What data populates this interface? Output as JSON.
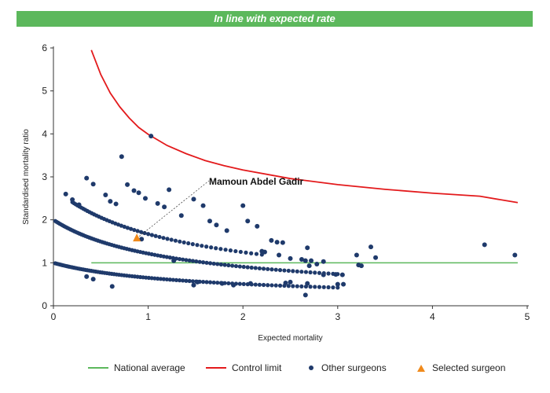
{
  "banner": {
    "text": "In line with expected rate",
    "color": "#5cb85c"
  },
  "chart_data": {
    "type": "scatter",
    "title": "",
    "xlabel": "Expected mortality",
    "ylabel": "Standardised mortality ratio",
    "xlim": [
      0,
      5
    ],
    "ylim": [
      0,
      6
    ],
    "x_ticks": [
      "0",
      "1",
      "2",
      "3",
      "4",
      "5"
    ],
    "y_ticks": [
      "0",
      "1",
      "2",
      "3",
      "4",
      "5",
      "6"
    ],
    "grid": false,
    "legend_position": "bottom",
    "annotation": {
      "text": "Mamoun Abdel Gadir",
      "x": 0.88,
      "y": 1.57
    },
    "series": [
      {
        "name": "National average",
        "kind": "line",
        "color": "#5cb85c",
        "x": [
          0.4,
          4.9
        ],
        "y": [
          1.0,
          1.0
        ]
      },
      {
        "name": "Control limit",
        "kind": "line",
        "color": "#e31a1c",
        "x": [
          0.4,
          0.5,
          0.6,
          0.7,
          0.8,
          0.9,
          1.0,
          1.2,
          1.4,
          1.6,
          1.8,
          2.0,
          2.5,
          3.0,
          3.5,
          4.0,
          4.5,
          4.9
        ],
        "y": [
          5.95,
          5.38,
          4.95,
          4.63,
          4.37,
          4.15,
          3.99,
          3.73,
          3.54,
          3.38,
          3.26,
          3.16,
          2.96,
          2.82,
          2.71,
          2.62,
          2.55,
          2.4
        ]
      },
      {
        "name": "Other surgeons",
        "kind": "scatter",
        "color": "#1f3a6b",
        "x": [
          0.13,
          0.2,
          0.27,
          0.35,
          0.42,
          0.55,
          0.6,
          0.66,
          0.72,
          0.78,
          0.85,
          0.9,
          0.97,
          1.03,
          1.1,
          1.17,
          1.22,
          1.35,
          1.48,
          1.58,
          1.65,
          1.72,
          1.83,
          2.0,
          2.05,
          2.15,
          2.2,
          2.23,
          2.3,
          2.36,
          2.42,
          2.38,
          2.5,
          2.62,
          2.66,
          2.68,
          2.7,
          2.72,
          2.78,
          2.85,
          2.98,
          3.05,
          3.2,
          3.25,
          3.35,
          3.4,
          4.55,
          4.87,
          0.35,
          0.42,
          1.52,
          1.48,
          1.78,
          2.08,
          2.5,
          2.66,
          2.68,
          3.0,
          3.06,
          3.22,
          1.27,
          0.93,
          0.62,
          1.9,
          2.45,
          2.85
        ],
        "y": [
          2.6,
          2.47,
          2.35,
          2.97,
          2.83,
          2.58,
          2.43,
          2.37,
          3.47,
          2.82,
          2.68,
          2.63,
          2.5,
          3.95,
          2.38,
          2.3,
          2.7,
          2.1,
          2.48,
          2.33,
          1.97,
          1.88,
          1.75,
          2.33,
          1.97,
          1.85,
          1.27,
          1.25,
          1.52,
          1.48,
          1.47,
          1.18,
          1.1,
          1.08,
          1.05,
          1.35,
          0.93,
          1.05,
          0.97,
          1.03,
          0.73,
          0.72,
          1.18,
          0.93,
          1.37,
          1.12,
          1.42,
          1.18,
          0.68,
          0.62,
          0.55,
          0.48,
          0.52,
          0.52,
          0.55,
          0.25,
          0.52,
          0.5,
          0.5,
          0.95,
          1.05,
          1.55,
          0.45,
          0.48,
          0.53,
          0.72
        ]
      },
      {
        "name": "Selected surgeon",
        "kind": "triangle",
        "color": "#f08a1c",
        "x": [
          0.88
        ],
        "y": [
          1.57
        ]
      }
    ],
    "curves": [
      {
        "x_start": 0.02,
        "x_end": 3.0,
        "count": 95,
        "value_at_zero": 1.0,
        "decay": 0.62,
        "color": "#1f3a6b"
      },
      {
        "x_start": 0.02,
        "x_end": 3.0,
        "count": 95,
        "value_at_zero": 2.0,
        "decay": 0.72,
        "color": "#1f3a6b"
      },
      {
        "x_start": 0.2,
        "x_end": 2.2,
        "count": 55,
        "value_at_zero": 2.75,
        "decay": 0.72,
        "color": "#1f3a6b"
      }
    ]
  }
}
